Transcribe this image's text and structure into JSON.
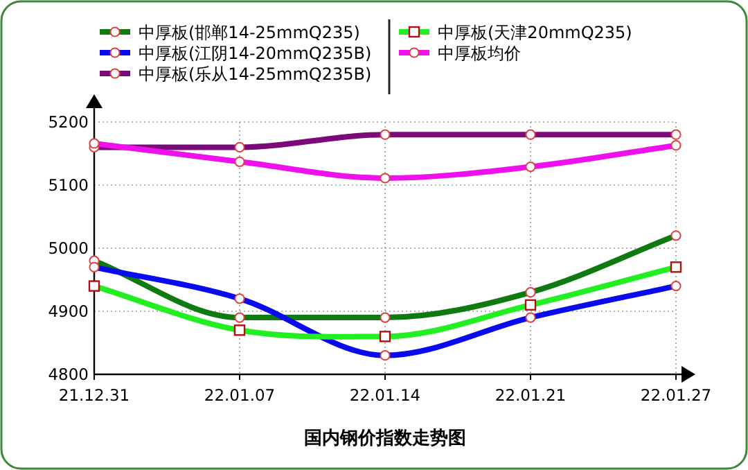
{
  "chart_data": {
    "type": "line",
    "xlabel": "国内钢价指数走势图",
    "categories": [
      "21.12.31",
      "22.01.07",
      "22.01.14",
      "22.01.21",
      "22.01.27"
    ],
    "ylim": [
      4800,
      5200
    ],
    "yticks": [
      4800,
      4900,
      5000,
      5100,
      5200
    ],
    "grid": true,
    "legend": "top",
    "line_style": "solid",
    "series": [
      {
        "name": "中厚板(邯郸14-25mmQ235)",
        "color": "#0f7a0f",
        "marker": "circle",
        "values": [
          4980,
          4890,
          4890,
          4930,
          5020
        ]
      },
      {
        "name": "中厚板(江阴14-20mmQ235B)",
        "color": "#0a0aee",
        "marker": "circle",
        "values": [
          4970,
          4920,
          4830,
          4890,
          4940
        ]
      },
      {
        "name": "中厚板(乐从14-25mmQ235B)",
        "color": "#7a0a7a",
        "marker": "circle",
        "values": [
          5160,
          5160,
          5180,
          5180,
          5180
        ]
      },
      {
        "name": "中厚板(天津20mmQ235)",
        "color": "#22ee22",
        "marker": "square",
        "values": [
          4940,
          4870,
          4860,
          4910,
          4970
        ]
      },
      {
        "name": "中厚板均价",
        "color": "#ee11ee",
        "marker": "circle",
        "values": [
          5166,
          5137,
          5111,
          5129,
          5163
        ]
      }
    ]
  }
}
